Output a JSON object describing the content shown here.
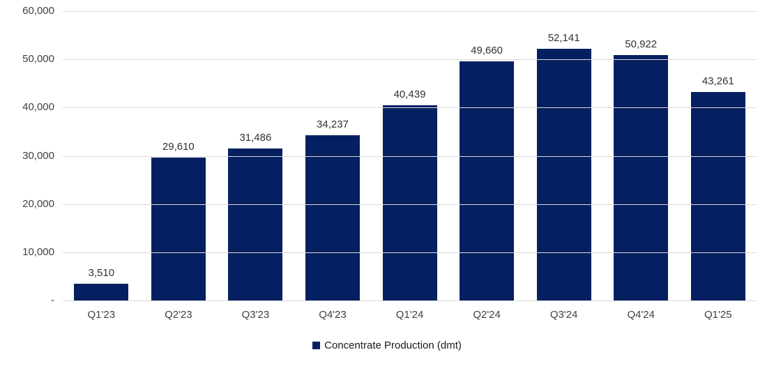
{
  "chart_data": {
    "type": "bar",
    "title": "",
    "categories": [
      "Q1'23",
      "Q2'23",
      "Q3'23",
      "Q4'23",
      "Q1'24",
      "Q2'24",
      "Q3'24",
      "Q4'24",
      "Q1'25"
    ],
    "values": [
      3510,
      29610,
      31486,
      34237,
      40439,
      49660,
      52141,
      50922,
      43261
    ],
    "value_labels": [
      "3,510",
      "29,610",
      "31,486",
      "34,237",
      "40,439",
      "49,660",
      "52,141",
      "50,922",
      "43,261"
    ],
    "legend": "Concentrate Production (dmt)",
    "legend_position": "bottom",
    "xlabel": "",
    "ylabel": "",
    "ylim": [
      0,
      60000
    ],
    "yticks": [
      {
        "value": 0,
        "label": "-"
      },
      {
        "value": 10000,
        "label": "10,000"
      },
      {
        "value": 20000,
        "label": "20,000"
      },
      {
        "value": 30000,
        "label": "30,000"
      },
      {
        "value": 40000,
        "label": "40,000"
      },
      {
        "value": 50000,
        "label": "50,000"
      },
      {
        "value": 60000,
        "label": "60,000"
      }
    ],
    "grid": true,
    "colors": {
      "bar": "#052060",
      "gridline": "#d9d9d9",
      "axis_text": "#404040"
    }
  }
}
